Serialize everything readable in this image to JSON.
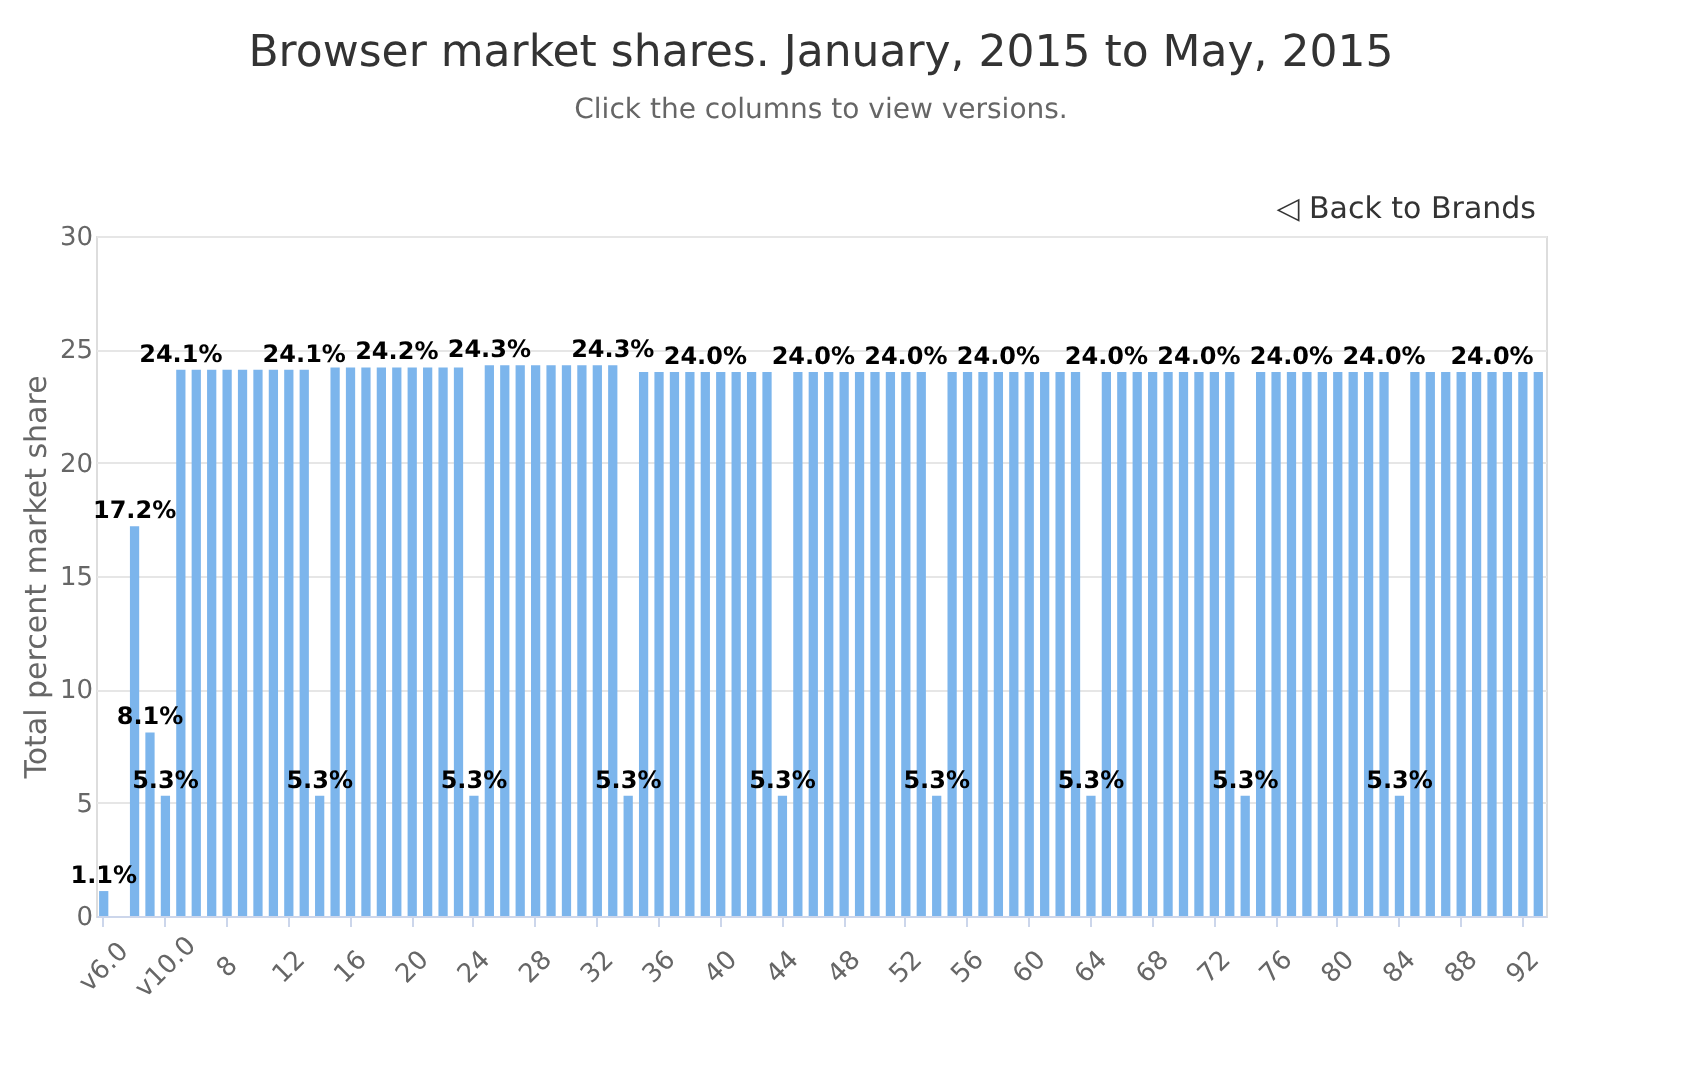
{
  "chart_data": {
    "type": "bar",
    "title": "Browser market shares. January, 2015 to May, 2015",
    "subtitle": "Click the columns to view versions.",
    "ylabel": "Total percent market share",
    "categories": [
      "v6.0",
      null,
      null,
      null,
      "v10.0",
      null,
      null,
      null,
      "8",
      null,
      null,
      null,
      "12",
      null,
      null,
      null,
      "16",
      null,
      null,
      null,
      "20",
      null,
      null,
      null,
      "24",
      null,
      null,
      null,
      "28",
      null,
      null,
      null,
      "32",
      null,
      null,
      null,
      "36",
      null,
      null,
      null,
      "40",
      null,
      null,
      null,
      "44",
      null,
      null,
      null,
      "48",
      null,
      null,
      null,
      "52",
      null,
      null,
      null,
      "56",
      null,
      null,
      null,
      "60",
      null,
      null,
      null,
      "64",
      null,
      null,
      null,
      "68",
      null,
      null,
      null,
      "72",
      null,
      null,
      null,
      "76",
      null,
      null,
      null,
      "80",
      null,
      null,
      null,
      "84",
      null,
      null,
      null,
      "88",
      null,
      null,
      null,
      "92",
      null
    ],
    "values": [
      1.1,
      0,
      17.2,
      8.1,
      5.3,
      24.1,
      24.1,
      24.1,
      24.1,
      24.1,
      24.1,
      24.1,
      24.1,
      24.1,
      5.3,
      24.2,
      24.2,
      24.2,
      24.2,
      24.2,
      24.2,
      24.2,
      24.2,
      24.2,
      5.3,
      24.3,
      24.3,
      24.3,
      24.3,
      24.3,
      24.3,
      24.3,
      24.3,
      24.3,
      5.3,
      24.0,
      24.0,
      24.0,
      24.0,
      24.0,
      24.0,
      24.0,
      24.0,
      24.0,
      5.3,
      24.0,
      24.0,
      24.0,
      24.0,
      24.0,
      24.0,
      24.0,
      24.0,
      24.0,
      5.3,
      24.0,
      24.0,
      24.0,
      24.0,
      24.0,
      24.0,
      24.0,
      24.0,
      24.0,
      5.3,
      24.0,
      24.0,
      24.0,
      24.0,
      24.0,
      24.0,
      24.0,
      24.0,
      24.0,
      5.3,
      24.0,
      24.0,
      24.0,
      24.0,
      24.0,
      24.0,
      24.0,
      24.0,
      24.0,
      5.3,
      24.0,
      24.0,
      24.0,
      24.0,
      24.0,
      24.0,
      24.0,
      24.0,
      24.0
    ],
    "value_labels": [
      "1.1%",
      null,
      "17.2%",
      "8.1%",
      "5.3%",
      "24.1%",
      null,
      null,
      null,
      null,
      null,
      null,
      null,
      "24.1%",
      "5.3%",
      null,
      null,
      null,
      null,
      "24.2%",
      null,
      null,
      null,
      null,
      "5.3%",
      "24.3%",
      null,
      null,
      null,
      null,
      null,
      null,
      null,
      "24.3%",
      "5.3%",
      null,
      null,
      null,
      null,
      "24.0%",
      null,
      null,
      null,
      null,
      "5.3%",
      null,
      "24.0%",
      null,
      null,
      null,
      null,
      null,
      "24.0%",
      null,
      "5.3%",
      null,
      null,
      null,
      "24.0%",
      null,
      null,
      null,
      null,
      null,
      "5.3%",
      "24.0%",
      null,
      null,
      null,
      null,
      null,
      "24.0%",
      null,
      null,
      "5.3%",
      null,
      null,
      "24.0%",
      null,
      null,
      null,
      null,
      null,
      "24.0%",
      "5.3%",
      null,
      null,
      null,
      null,
      null,
      "24.0%",
      null,
      null,
      null
    ],
    "color": "#7cb5ec",
    "ylim": [
      0,
      30
    ],
    "yticks": [
      0,
      5,
      10,
      15,
      20,
      25,
      30
    ],
    "grid": "y",
    "legend": false,
    "annotations": [
      "◁ Back to Brands"
    ]
  }
}
